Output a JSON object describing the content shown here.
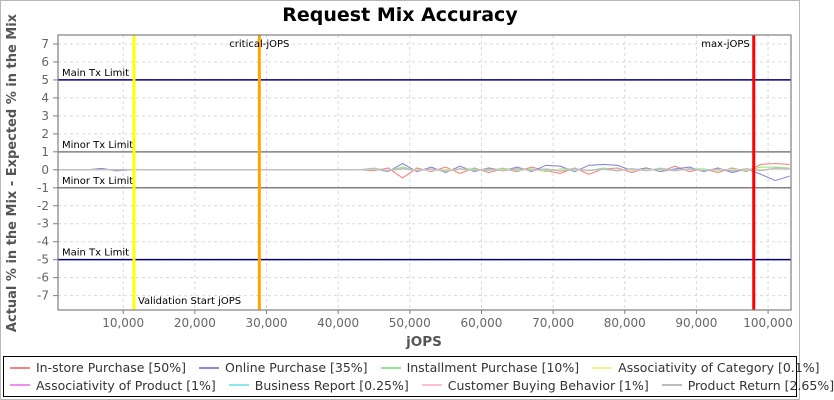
{
  "chart_data": {
    "type": "line",
    "title": "Request Mix Accuracy",
    "xlabel": "jOPS",
    "ylabel": "Actual % in the Mix - Expected % in the Mix",
    "xlim": [
      900,
      103200
    ],
    "ylim": [
      -7.8,
      7.5
    ],
    "x_ticks": [
      10000,
      20000,
      30000,
      40000,
      50000,
      60000,
      70000,
      80000,
      90000,
      100000
    ],
    "y_ticks": [
      -7,
      -6,
      -5,
      -4,
      -3,
      -2,
      -1,
      0,
      1,
      2,
      3,
      4,
      5,
      6,
      7
    ],
    "grid": true,
    "legend_position": "bottom",
    "x_start": 1000,
    "x_step": 2000,
    "limits": [
      {
        "value": 5,
        "label": "Main Tx Limit",
        "color": "#000080"
      },
      {
        "value": 1,
        "label": "Minor Tx Limit",
        "color": "#808080"
      },
      {
        "value": -1,
        "label": "Minor Tx Limit",
        "color": "#808080"
      },
      {
        "value": -5,
        "label": "Main Tx Limit",
        "color": "#000080"
      }
    ],
    "markers": [
      {
        "value": 11500,
        "label": "Validation Start jOPS",
        "color": "#ffff00",
        "label_pos": "bottom-right"
      },
      {
        "value": 29000,
        "label": "critical-jOPS",
        "color": "#ffa500",
        "label_pos": "top-center"
      },
      {
        "value": 98000,
        "label": "max-jOPS",
        "color": "#ff0000",
        "label_pos": "top-left"
      }
    ],
    "series": [
      {
        "name": "In-store Purchase [50%]",
        "color": "#f48484",
        "values": [
          0,
          0,
          0,
          0.05,
          -0.05,
          0,
          0,
          0,
          0,
          0,
          0,
          0,
          0,
          0,
          0,
          0,
          0,
          0,
          0,
          0,
          0,
          0,
          -0.05,
          0.1,
          -0.45,
          0.1,
          -0.1,
          0.15,
          -0.2,
          0.1,
          -0.15,
          0.05,
          -0.1,
          0.15,
          -0.05,
          -0.2,
          0.1,
          -0.25,
          0.05,
          0.1,
          -0.15,
          0.1,
          -0.1,
          0.2,
          -0.1,
          0.05,
          -0.15,
          0.1,
          -0.1,
          0.3,
          0.35,
          0.3
        ]
      },
      {
        "name": "Online Purchase [35%]",
        "color": "#8a8ad2",
        "values": [
          0,
          0,
          0,
          0.08,
          -0.05,
          0,
          0,
          0,
          0,
          0,
          0,
          0,
          0,
          0,
          0,
          0,
          0,
          0,
          0,
          0,
          0,
          0,
          0.05,
          -0.1,
          0.35,
          -0.1,
          0.15,
          -0.15,
          0.2,
          -0.1,
          0.1,
          -0.05,
          0.15,
          -0.1,
          0.25,
          0.2,
          -0.1,
          0.25,
          0.3,
          0.25,
          -0.05,
          0.1,
          -0.1,
          0.05,
          0.15,
          -0.1,
          0.1,
          -0.15,
          0.05,
          -0.25,
          -0.6,
          -0.35
        ]
      },
      {
        "name": "Installment Purchase [10%]",
        "color": "#90e890",
        "values": [
          0,
          0,
          0,
          0,
          0,
          0,
          0,
          0,
          0,
          0,
          0,
          0,
          0,
          0,
          0,
          0,
          0,
          0,
          0,
          0,
          0,
          0,
          0.1,
          -0.05,
          0.15,
          -0.05,
          0.05,
          -0.1,
          0.05,
          0.05,
          -0.05,
          0.1,
          -0.05,
          0.05,
          -0.1,
          0.05,
          0.05,
          -0.05,
          0.1,
          -0.05,
          0.05,
          -0.05,
          0.1,
          -0.05,
          0.05,
          0.05,
          -0.05,
          0.05,
          -0.05,
          0.15,
          0.15,
          0.1
        ]
      },
      {
        "name": "Associativity of Category [0.1%]",
        "color": "#f2f28c",
        "values": [
          0,
          0,
          0,
          0,
          0,
          0,
          0,
          0,
          0,
          0,
          0,
          0,
          0,
          0,
          0,
          0,
          0,
          0,
          0,
          0,
          0,
          0,
          0.02,
          -0.02,
          0.03,
          0,
          -0.02,
          0.02,
          0,
          -0.02,
          0.02,
          0,
          0.02,
          -0.02,
          0,
          0.02,
          0,
          -0.02,
          0.02,
          0,
          -0.02,
          0.02,
          0,
          -0.02,
          0.02,
          0,
          -0.02,
          0.02,
          0,
          0.02,
          0.03,
          0.02
        ]
      },
      {
        "name": "Associativity of Product [1%]",
        "color": "#f090e8",
        "values": [
          0,
          0,
          0,
          0,
          0,
          0,
          0,
          0,
          0,
          0,
          0,
          0,
          0,
          0,
          0,
          0,
          0,
          0,
          0,
          0,
          0,
          0,
          0.04,
          -0.04,
          0.05,
          -0.03,
          0.03,
          -0.04,
          0.04,
          -0.03,
          0.03,
          -0.04,
          0.04,
          -0.03,
          0.05,
          -0.04,
          0.03,
          -0.03,
          0.04,
          -0.04,
          0.03,
          -0.03,
          0.04,
          -0.03,
          0.03,
          -0.04,
          0.04,
          -0.03,
          0.03,
          -0.04,
          0.06,
          0.04
        ]
      },
      {
        "name": "Business Report [0.25%]",
        "color": "#8ce8e8",
        "values": [
          0,
          0,
          0,
          0,
          0,
          0,
          0,
          0,
          0,
          0,
          0,
          0,
          0,
          0,
          0,
          0,
          0,
          0,
          0,
          0,
          0,
          0,
          0.03,
          -0.03,
          0.04,
          -0.02,
          0.02,
          -0.03,
          0.03,
          -0.02,
          0.02,
          -0.03,
          0.03,
          -0.02,
          0.02,
          -0.03,
          0.03,
          -0.02,
          0.02,
          -0.03,
          0.03,
          -0.02,
          0.02,
          -0.03,
          0.03,
          -0.02,
          0.02,
          -0.03,
          0.03,
          -0.02,
          0.04,
          0.03
        ]
      },
      {
        "name": "Customer Buying Behavior [1%]",
        "color": "#ffc0cb",
        "values": [
          0,
          0,
          0,
          0,
          0,
          0,
          0,
          0,
          0,
          0,
          0,
          0,
          0,
          0,
          0,
          0,
          0,
          0,
          0,
          0,
          0,
          0,
          0.05,
          -0.04,
          0.06,
          -0.04,
          0.04,
          -0.05,
          0.05,
          -0.04,
          0.04,
          -0.05,
          0.05,
          -0.04,
          0.04,
          -0.05,
          0.05,
          -0.04,
          0.04,
          -0.05,
          0.05,
          -0.04,
          0.04,
          -0.05,
          0.05,
          -0.04,
          0.04,
          -0.05,
          0.05,
          -0.04,
          0.06,
          0.05
        ]
      },
      {
        "name": "Product Return [2.65%]",
        "color": "#bcbcbc",
        "values": [
          0,
          0,
          0,
          0,
          0,
          0,
          0,
          0,
          0,
          0,
          0,
          0,
          0,
          0,
          0,
          0,
          0,
          0,
          0,
          0,
          0,
          0,
          0.08,
          -0.06,
          0.08,
          -0.05,
          0.05,
          -0.08,
          0.06,
          -0.05,
          0.05,
          -0.06,
          0.08,
          -0.05,
          0.05,
          -0.08,
          0.06,
          -0.05,
          0.05,
          -0.06,
          0.08,
          -0.05,
          0.05,
          -0.06,
          0.06,
          -0.05,
          0.05,
          -0.06,
          0.06,
          -0.05,
          0.1,
          0.08
        ]
      }
    ],
    "styles": {
      "grid_color": "#d9d9d9",
      "border_color": "#808080",
      "tick_label_color": "#666666",
      "axis_label_color": "#555555",
      "annotation_color": "#000000"
    }
  }
}
